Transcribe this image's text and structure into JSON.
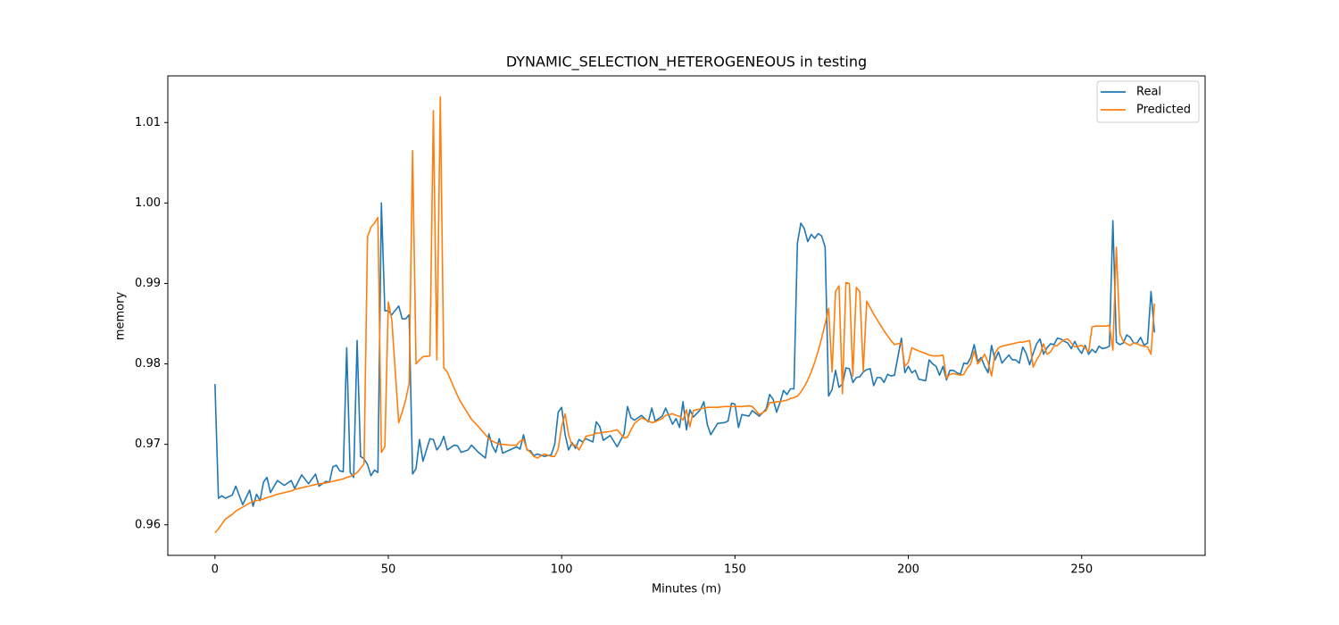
{
  "chart_data": {
    "type": "line",
    "title": "DYNAMIC_SELECTION_HETEROGENEOUS in testing",
    "x_label": "Minutes (m)",
    "y_label": "memory",
    "xlim": [
      -13.6,
      285.6
    ],
    "xticks": [
      0,
      50,
      100,
      150,
      200,
      250
    ],
    "ylim": [
      0.9562,
      1.0158
    ],
    "yticks": [
      0.96,
      0.97,
      0.98,
      0.99,
      {
        "value": 1,
        "label": "1.00"
      },
      1.01
    ],
    "legend": "upper right",
    "x": [
      0,
      1,
      2,
      3,
      5,
      6,
      8,
      10,
      11,
      12,
      13,
      14,
      15,
      16,
      18,
      20,
      22,
      23,
      25,
      27,
      29,
      30,
      32,
      33,
      34,
      35,
      36,
      37,
      38,
      39,
      40,
      41,
      42,
      43,
      44,
      45,
      46,
      47,
      48,
      49,
      50,
      51,
      53,
      54,
      55,
      56,
      57,
      58,
      59,
      60,
      62,
      63,
      64,
      65,
      66,
      67,
      69,
      70,
      71,
      73,
      74,
      76,
      78,
      79,
      80,
      81,
      82,
      83,
      85,
      87,
      88,
      89,
      90,
      91,
      92,
      93,
      95,
      97,
      98,
      99,
      100,
      101,
      102,
      103,
      104,
      105,
      106,
      107,
      109,
      110,
      111,
      112,
      114,
      116,
      118,
      119,
      120,
      121,
      123,
      125,
      126,
      127,
      129,
      130,
      132,
      133,
      134,
      135,
      136,
      137,
      138,
      140,
      141,
      142,
      143,
      145,
      147,
      148,
      149,
      150,
      151,
      152,
      154,
      155,
      157,
      159,
      160,
      161,
      162,
      163,
      164,
      165,
      166,
      167,
      168,
      169,
      170,
      171,
      172,
      173,
      174,
      175,
      176,
      177,
      178,
      179,
      180,
      181,
      182,
      183,
      184,
      185,
      186,
      187,
      188,
      189,
      190,
      191,
      192,
      193,
      194,
      195,
      196,
      198,
      199,
      200,
      201,
      202,
      203,
      205,
      206,
      207,
      208,
      209,
      210,
      211,
      212,
      213,
      214,
      215,
      216,
      217,
      218,
      219,
      220,
      221,
      222,
      223,
      224,
      225,
      226,
      227,
      228,
      229,
      230,
      231,
      232,
      233,
      234,
      235,
      236,
      237,
      238,
      239,
      240,
      241,
      242,
      243,
      244,
      245,
      246,
      247,
      248,
      249,
      250,
      251,
      252,
      253,
      254,
      255,
      256,
      257,
      258,
      259,
      260,
      261,
      262,
      263,
      264,
      265,
      266,
      267,
      268,
      269,
      270,
      271
    ],
    "series": [
      {
        "name": "Real",
        "color": "#1f77b4",
        "values": [
          0.9775,
          0.9633,
          0.9636,
          0.9633,
          0.9637,
          0.9648,
          0.9625,
          0.9643,
          0.9623,
          0.9638,
          0.963,
          0.9653,
          0.9659,
          0.964,
          0.9655,
          0.9649,
          0.9655,
          0.9645,
          0.9662,
          0.9651,
          0.9663,
          0.9648,
          0.9654,
          0.9653,
          0.9672,
          0.9674,
          0.9667,
          0.9666,
          0.982,
          0.9665,
          0.9659,
          0.9829,
          0.9685,
          0.9682,
          0.9675,
          0.9661,
          0.9668,
          0.9665,
          1.0,
          0.9866,
          0.9866,
          0.9861,
          0.9872,
          0.9856,
          0.9856,
          0.9861,
          0.9663,
          0.967,
          0.9706,
          0.9679,
          0.9707,
          0.9706,
          0.9693,
          0.9699,
          0.971,
          0.9693,
          0.9699,
          0.9698,
          0.969,
          0.9693,
          0.9699,
          0.969,
          0.9683,
          0.9713,
          0.9698,
          0.969,
          0.9707,
          0.9689,
          0.9693,
          0.9697,
          0.9694,
          0.9712,
          0.9693,
          0.9692,
          0.9686,
          0.9688,
          0.9685,
          0.9687,
          0.97,
          0.974,
          0.9746,
          0.9712,
          0.9693,
          0.9702,
          0.9695,
          0.9706,
          0.9703,
          0.9707,
          0.9703,
          0.9728,
          0.9722,
          0.9705,
          0.9711,
          0.9697,
          0.9713,
          0.9747,
          0.9733,
          0.973,
          0.9736,
          0.9728,
          0.9745,
          0.9729,
          0.9735,
          0.9745,
          0.9725,
          0.9732,
          0.9721,
          0.9753,
          0.9718,
          0.9743,
          0.9734,
          0.9743,
          0.9753,
          0.9725,
          0.9712,
          0.9726,
          0.9727,
          0.9729,
          0.9751,
          0.975,
          0.9721,
          0.9737,
          0.9735,
          0.9742,
          0.9735,
          0.9744,
          0.9762,
          0.9756,
          0.974,
          0.9752,
          0.9767,
          0.9762,
          0.9769,
          0.9769,
          0.995,
          0.9975,
          0.9968,
          0.9952,
          0.9961,
          0.9956,
          0.9962,
          0.9959,
          0.9945,
          0.976,
          0.9768,
          0.9792,
          0.9771,
          0.9775,
          0.9795,
          0.9794,
          0.9777,
          0.9783,
          0.9784,
          0.979,
          0.9793,
          0.9794,
          0.9773,
          0.9783,
          0.9783,
          0.9777,
          0.9787,
          0.9785,
          0.9786,
          0.9832,
          0.9789,
          0.9797,
          0.9789,
          0.9792,
          0.9781,
          0.9779,
          0.9805,
          0.98,
          0.9797,
          0.9786,
          0.9797,
          0.978,
          0.9792,
          0.9792,
          0.9789,
          0.9787,
          0.9801,
          0.98,
          0.9808,
          0.9824,
          0.9803,
          0.9808,
          0.9797,
          0.9789,
          0.9823,
          0.9805,
          0.9815,
          0.9801,
          0.9806,
          0.9811,
          0.9805,
          0.9805,
          0.9801,
          0.9821,
          0.9813,
          0.9799,
          0.9813,
          0.9825,
          0.9831,
          0.9812,
          0.982,
          0.9825,
          0.9824,
          0.9832,
          0.9831,
          0.9828,
          0.9826,
          0.9819,
          0.9828,
          0.9819,
          0.9813,
          0.9823,
          0.9812,
          0.9818,
          0.9814,
          0.9822,
          0.9819,
          0.982,
          0.9822,
          0.9978,
          0.9827,
          0.9824,
          0.9826,
          0.9836,
          0.9833,
          0.9826,
          0.9826,
          0.9833,
          0.9823,
          0.9826,
          0.989,
          0.9839
        ]
      },
      {
        "name": "Predicted",
        "color": "#ff7f0e",
        "values": [
          0.959,
          0.9595,
          0.9601,
          0.9607,
          0.9613,
          0.9617,
          0.9622,
          0.9627,
          0.9629,
          0.963,
          0.9631,
          0.9632,
          0.9634,
          0.9635,
          0.9638,
          0.964,
          0.9642,
          0.9644,
          0.9646,
          0.9648,
          0.965,
          0.9651,
          0.9652,
          0.9653,
          0.9654,
          0.9655,
          0.9656,
          0.9657,
          0.9659,
          0.966,
          0.9662,
          0.9665,
          0.967,
          0.9676,
          0.9958,
          0.997,
          0.9975,
          0.9982,
          0.969,
          0.9697,
          0.9877,
          0.9855,
          0.9727,
          0.974,
          0.9755,
          0.9776,
          1.0065,
          0.98,
          0.9805,
          0.9809,
          0.981,
          1.0115,
          0.9805,
          1.0132,
          0.9795,
          0.979,
          0.977,
          0.976,
          0.9752,
          0.9738,
          0.9731,
          0.9722,
          0.9712,
          0.9707,
          0.9704,
          0.9702,
          0.97,
          0.97,
          0.9699,
          0.9699,
          0.9704,
          0.9706,
          0.9694,
          0.969,
          0.9685,
          0.9683,
          0.9688,
          0.9685,
          0.9685,
          0.9694,
          0.9722,
          0.9738,
          0.9712,
          0.9699,
          0.9699,
          0.9693,
          0.9701,
          0.971,
          0.9712,
          0.9714,
          0.9714,
          0.9715,
          0.9716,
          0.9718,
          0.9708,
          0.9709,
          0.9718,
          0.9726,
          0.9733,
          0.9729,
          0.9727,
          0.9728,
          0.9732,
          0.9736,
          0.9738,
          0.9736,
          0.9735,
          0.973,
          0.9743,
          0.9722,
          0.9742,
          0.9744,
          0.9745,
          0.9746,
          0.9746,
          0.9746,
          0.9747,
          0.9747,
          0.9747,
          0.9747,
          0.9747,
          0.9747,
          0.9748,
          0.9747,
          0.9737,
          0.9742,
          0.9752,
          0.9752,
          0.9753,
          0.9753,
          0.9754,
          0.9755,
          0.9757,
          0.9758,
          0.976,
          0.9765,
          0.9772,
          0.978,
          0.979,
          0.9802,
          0.9816,
          0.9832,
          0.985,
          0.9869,
          0.979,
          0.989,
          0.9897,
          0.9763,
          0.9901,
          0.99,
          0.9785,
          0.9895,
          0.989,
          0.9791,
          0.9878,
          0.987,
          0.9862,
          0.9855,
          0.9848,
          0.9841,
          0.9835,
          0.9829,
          0.9824,
          0.9826,
          0.9797,
          0.9802,
          0.982,
          0.9818,
          0.9816,
          0.9813,
          0.9811,
          0.981,
          0.981,
          0.981,
          0.9811,
          0.9782,
          0.9787,
          0.9788,
          0.9787,
          0.9786,
          0.9787,
          0.9795,
          0.98,
          0.9816,
          0.98,
          0.9805,
          0.9812,
          0.9802,
          0.9785,
          0.9813,
          0.982,
          0.9822,
          0.9823,
          0.9824,
          0.9825,
          0.9826,
          0.9827,
          0.9827,
          0.9828,
          0.9829,
          0.9796,
          0.9805,
          0.9812,
          0.9825,
          0.9812,
          0.9815,
          0.9822,
          0.9823,
          0.9827,
          0.983,
          0.9831,
          0.9826,
          0.9821,
          0.9822,
          0.9823,
          0.982,
          0.9815,
          0.9846,
          0.9847,
          0.9847,
          0.9847,
          0.9847,
          0.9848,
          0.9817,
          0.9945,
          0.9838,
          0.9828,
          0.9825,
          0.9823,
          0.9826,
          0.9825,
          0.9823,
          0.9822,
          0.9821,
          0.9812,
          0.9875
        ]
      }
    ]
  }
}
